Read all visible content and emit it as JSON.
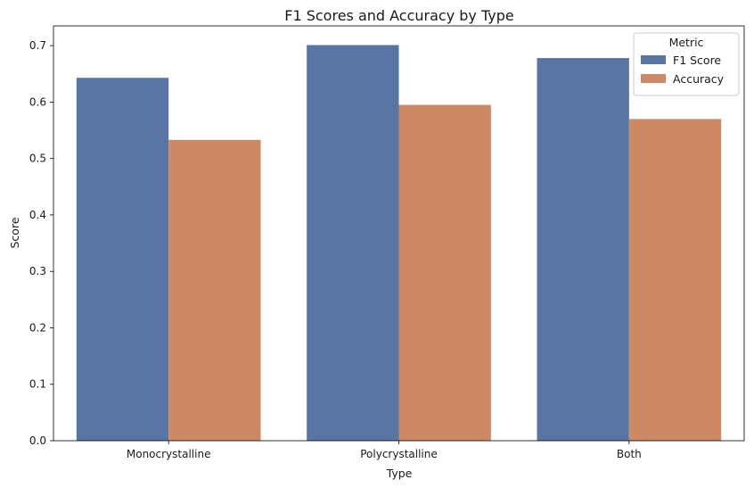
{
  "chart_data": {
    "type": "bar",
    "title": "F1 Scores and Accuracy by Type",
    "xlabel": "Type",
    "ylabel": "Score",
    "categories": [
      "Monocrystalline",
      "Polycrystalline",
      "Both"
    ],
    "series": [
      {
        "name": "F1 Score",
        "values": [
          0.643,
          0.701,
          0.678
        ],
        "color": "#5975a4"
      },
      {
        "name": "Accuracy",
        "values": [
          0.533,
          0.595,
          0.57
        ],
        "color": "#cc8963"
      }
    ],
    "ylim": [
      0,
      0.735
    ],
    "yticks": [
      "0.0",
      "0.1",
      "0.2",
      "0.3",
      "0.4",
      "0.5",
      "0.6",
      "0.7"
    ],
    "legend": {
      "title": "Metric",
      "position": "top-right"
    },
    "grid": false
  }
}
